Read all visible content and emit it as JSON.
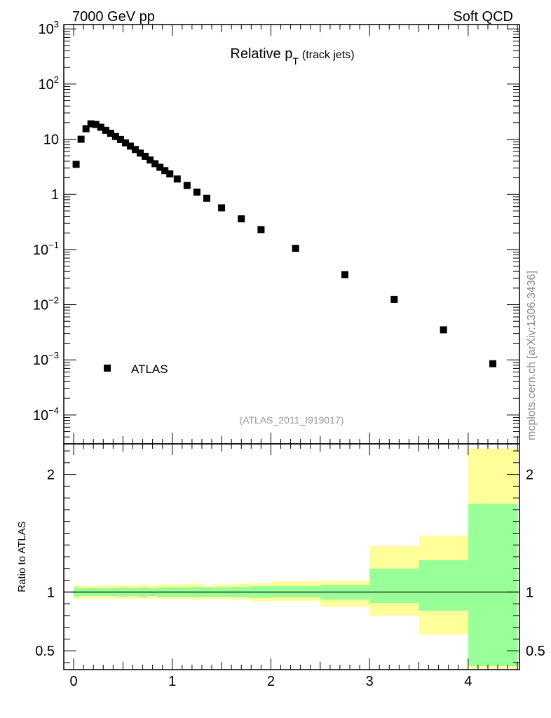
{
  "header": {
    "left": "7000 GeV pp",
    "right": "Soft QCD"
  },
  "watermark": "mcplots.cern.ch [arXiv:1306.3436]",
  "analysis_id": "(ATLAS_2011_I919017)",
  "colors": {
    "band_outer": "#ffff99",
    "band_inner": "#99ff99",
    "marker": "#000000"
  },
  "chart_data": [
    {
      "type": "scatter",
      "title_main": "Relative p",
      "title_sub": "T",
      "title_rest": "(track jets)",
      "xlim": [
        -0.1,
        4.52
      ],
      "ylim": [
        3e-05,
        1200
      ],
      "yscale": "log",
      "legend": {
        "label": "ATLAS",
        "placement": "lower-left"
      },
      "y_tick_labels": [
        {
          "base": "10",
          "exp": "3",
          "value": 1000
        },
        {
          "base": "10",
          "exp": "2",
          "value": 100
        },
        {
          "base": "10",
          "exp": "",
          "value": 10
        },
        {
          "base": "1",
          "exp": "",
          "value": 1
        },
        {
          "base": "10",
          "exp": "−1",
          "value": 0.1
        },
        {
          "base": "10",
          "exp": "−2",
          "value": 0.01
        },
        {
          "base": "10",
          "exp": "−3",
          "value": 0.001
        },
        {
          "base": "10",
          "exp": "−4",
          "value": 0.0001
        }
      ],
      "series": [
        {
          "name": "ATLAS",
          "x": [
            0.025,
            0.075,
            0.125,
            0.175,
            0.225,
            0.275,
            0.325,
            0.375,
            0.425,
            0.475,
            0.525,
            0.575,
            0.625,
            0.675,
            0.725,
            0.775,
            0.825,
            0.875,
            0.925,
            0.975,
            1.05,
            1.15,
            1.25,
            1.35,
            1.5,
            1.7,
            1.9,
            2.25,
            2.75,
            3.25,
            3.75,
            4.25
          ],
          "y": [
            3.5,
            10,
            15.5,
            19,
            18.5,
            16.5,
            14.5,
            12.8,
            11.2,
            9.9,
            8.6,
            7.5,
            6.5,
            5.6,
            4.9,
            4.2,
            3.6,
            3.1,
            2.7,
            2.35,
            1.9,
            1.45,
            1.1,
            0.85,
            0.57,
            0.36,
            0.23,
            0.105,
            0.035,
            0.0125,
            0.0035,
            0.00085
          ]
        }
      ]
    },
    {
      "type": "area",
      "ylabel": "Ratio to ATLAS",
      "xlim": [
        -0.1,
        4.52
      ],
      "ylim": [
        0.34,
        2.26
      ],
      "x_tick_labels": [
        "0",
        "1",
        "2",
        "3",
        "4"
      ],
      "y_tick_labels": [
        "2",
        "1",
        "0.5"
      ],
      "y_tick_values": [
        2,
        1,
        0.5
      ],
      "reference_line": 1,
      "bins": [
        {
          "x0": 0.0,
          "x1": 0.05,
          "outer_lo": 0.94,
          "outer_hi": 1.06,
          "inner_lo": 0.96,
          "inner_hi": 1.04
        },
        {
          "x0": 0.05,
          "x1": 0.15,
          "outer_lo": 0.945,
          "outer_hi": 1.05,
          "inner_lo": 0.965,
          "inner_hi": 1.035
        },
        {
          "x0": 0.15,
          "x1": 0.25,
          "outer_lo": 0.945,
          "outer_hi": 1.055,
          "inner_lo": 0.965,
          "inner_hi": 1.035
        },
        {
          "x0": 0.25,
          "x1": 0.35,
          "outer_lo": 0.945,
          "outer_hi": 1.055,
          "inner_lo": 0.965,
          "inner_hi": 1.035
        },
        {
          "x0": 0.35,
          "x1": 0.45,
          "outer_lo": 0.945,
          "outer_hi": 1.06,
          "inner_lo": 0.965,
          "inner_hi": 1.035
        },
        {
          "x0": 0.45,
          "x1": 0.55,
          "outer_lo": 0.94,
          "outer_hi": 1.06,
          "inner_lo": 0.96,
          "inner_hi": 1.04
        },
        {
          "x0": 0.55,
          "x1": 0.65,
          "outer_lo": 0.945,
          "outer_hi": 1.055,
          "inner_lo": 0.965,
          "inner_hi": 1.035
        },
        {
          "x0": 0.65,
          "x1": 0.75,
          "outer_lo": 0.94,
          "outer_hi": 1.065,
          "inner_lo": 0.96,
          "inner_hi": 1.04
        },
        {
          "x0": 0.75,
          "x1": 0.85,
          "outer_lo": 0.945,
          "outer_hi": 1.06,
          "inner_lo": 0.965,
          "inner_hi": 1.035
        },
        {
          "x0": 0.85,
          "x1": 0.95,
          "outer_lo": 0.94,
          "outer_hi": 1.065,
          "inner_lo": 0.96,
          "inner_hi": 1.04
        },
        {
          "x0": 0.95,
          "x1": 1.1,
          "outer_lo": 0.94,
          "outer_hi": 1.065,
          "inner_lo": 0.96,
          "inner_hi": 1.04
        },
        {
          "x0": 1.1,
          "x1": 1.2,
          "outer_lo": 0.94,
          "outer_hi": 1.07,
          "inner_lo": 0.96,
          "inner_hi": 1.04
        },
        {
          "x0": 1.2,
          "x1": 1.3,
          "outer_lo": 0.935,
          "outer_hi": 1.075,
          "inner_lo": 0.955,
          "inner_hi": 1.045
        },
        {
          "x0": 1.3,
          "x1": 1.4,
          "outer_lo": 0.94,
          "outer_hi": 1.05,
          "inner_lo": 0.96,
          "inner_hi": 1.04
        },
        {
          "x0": 1.4,
          "x1": 1.6,
          "outer_lo": 0.94,
          "outer_hi": 1.065,
          "inner_lo": 0.96,
          "inner_hi": 1.04
        },
        {
          "x0": 1.6,
          "x1": 1.8,
          "outer_lo": 0.935,
          "outer_hi": 1.07,
          "inner_lo": 0.955,
          "inner_hi": 1.045
        },
        {
          "x0": 1.8,
          "x1": 2.0,
          "outer_lo": 0.92,
          "outer_hi": 1.075,
          "inner_lo": 0.95,
          "inner_hi": 1.05
        },
        {
          "x0": 2.0,
          "x1": 2.5,
          "outer_lo": 0.925,
          "outer_hi": 1.09,
          "inner_lo": 0.955,
          "inner_hi": 1.05
        },
        {
          "x0": 2.5,
          "x1": 3.0,
          "outer_lo": 0.875,
          "outer_hi": 1.095,
          "inner_lo": 0.935,
          "inner_hi": 1.06
        },
        {
          "x0": 3.0,
          "x1": 3.5,
          "outer_lo": 0.8,
          "outer_hi": 1.39,
          "inner_lo": 0.905,
          "inner_hi": 1.2
        },
        {
          "x0": 3.5,
          "x1": 4.0,
          "outer_lo": 0.64,
          "outer_hi": 1.48,
          "inner_lo": 0.84,
          "inner_hi": 1.27
        },
        {
          "x0": 4.0,
          "x1": 4.5,
          "outer_lo": 0.35,
          "outer_hi": 2.22,
          "inner_lo": 0.37,
          "inner_hi": 1.75
        }
      ]
    }
  ]
}
